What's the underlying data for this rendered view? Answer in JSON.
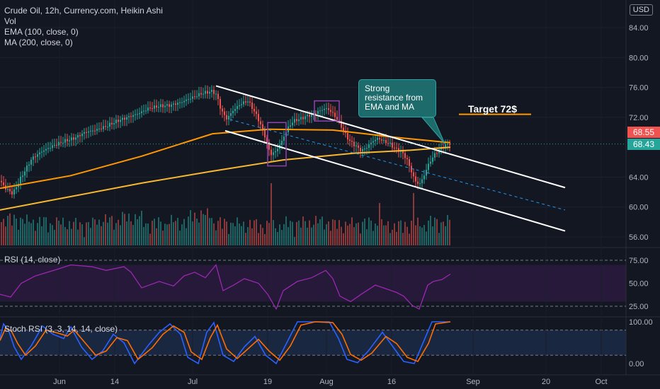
{
  "header": {
    "symbol_line": "Crude Oil, 12h, Currency.com, Heikin Ashi",
    "vol": "Vol",
    "ema": "EMA (100, close, 0)",
    "ma": "MA (200, close, 0)",
    "currency": "USD"
  },
  "annotations": {
    "callout": "Strong resistance from EMA and MA",
    "target": "Target 72$"
  },
  "price_tags": {
    "ma_value": "68.55",
    "last_price": "68.43"
  },
  "rsi_label": "RSI (14, close)",
  "stoch_label": "Stoch RSI (3, 3, 14, 14, close)",
  "colors": {
    "background": "#131722",
    "bull": "#26a69a",
    "bear": "#ef5350",
    "ema": "#ff9800",
    "ma": "#f7b731",
    "rsi": "#9c27b0",
    "stoch_k": "#2962ff",
    "stoch_d": "#ff6d00"
  },
  "chart_data": {
    "type": "candlestick",
    "price_axis": {
      "ticks": [
        "84.00",
        "80.00",
        "76.00",
        "72.00",
        "64.00",
        "60.00",
        "56.00"
      ],
      "ylim": [
        55,
        86
      ]
    },
    "rsi_axis": {
      "ticks": [
        "75.00",
        "50.00",
        "25.00"
      ],
      "ylim": [
        12,
        86
      ]
    },
    "stoch_axis": {
      "ticks": [
        "100.00",
        "0.00"
      ],
      "ylim": [
        -12,
        112
      ]
    },
    "time_ticks": [
      "Jun",
      "14",
      "Jul",
      "19",
      "Aug",
      "16",
      "Sep",
      "20",
      "Oct"
    ],
    "price_path": [
      [
        0,
        63.5
      ],
      [
        8,
        62.5
      ],
      [
        18,
        61.8
      ],
      [
        30,
        64.0
      ],
      [
        45,
        66.5
      ],
      [
        60,
        67.5
      ],
      [
        75,
        68.2
      ],
      [
        90,
        68.8
      ],
      [
        105,
        69.2
      ],
      [
        120,
        70.0
      ],
      [
        135,
        70.3
      ],
      [
        150,
        70.8
      ],
      [
        165,
        71.5
      ],
      [
        180,
        72.0
      ],
      [
        195,
        72.5
      ],
      [
        210,
        73.2
      ],
      [
        225,
        73.5
      ],
      [
        240,
        73.6
      ],
      [
        255,
        74.0
      ],
      [
        270,
        74.6
      ],
      [
        285,
        75.2
      ],
      [
        300,
        75.5
      ],
      [
        306,
        75.0
      ],
      [
        312,
        73.0
      ],
      [
        320,
        71.8
      ],
      [
        330,
        73.0
      ],
      [
        340,
        73.8
      ],
      [
        350,
        74.2
      ],
      [
        358,
        73.0
      ],
      [
        366,
        71.5
      ],
      [
        374,
        69.5
      ],
      [
        382,
        67.0
      ],
      [
        390,
        67.5
      ],
      [
        398,
        68.8
      ],
      [
        406,
        70.5
      ],
      [
        414,
        71.5
      ],
      [
        424,
        71.8
      ],
      [
        434,
        72.2
      ],
      [
        444,
        72.5
      ],
      [
        454,
        73.0
      ],
      [
        462,
        73.2
      ],
      [
        470,
        72.5
      ],
      [
        478,
        71.5
      ],
      [
        486,
        70.0
      ],
      [
        494,
        68.8
      ],
      [
        502,
        68.2
      ],
      [
        510,
        67.5
      ],
      [
        518,
        68.0
      ],
      [
        526,
        68.8
      ],
      [
        534,
        69.2
      ],
      [
        542,
        68.8
      ],
      [
        550,
        68.5
      ],
      [
        558,
        67.8
      ],
      [
        566,
        67.5
      ],
      [
        574,
        66.5
      ],
      [
        580,
        65.0
      ],
      [
        586,
        63.5
      ],
      [
        592,
        63.0
      ],
      [
        598,
        64.0
      ],
      [
        604,
        65.5
      ],
      [
        610,
        66.5
      ],
      [
        616,
        67.3
      ],
      [
        622,
        67.8
      ],
      [
        628,
        68.2
      ],
      [
        636,
        68.5
      ]
    ],
    "ema_100": [
      [
        0,
        62.5
      ],
      [
        100,
        64.2
      ],
      [
        200,
        66.8
      ],
      [
        300,
        69.8
      ],
      [
        380,
        70.4
      ],
      [
        470,
        70.3
      ],
      [
        560,
        69.3
      ],
      [
        636,
        68.6
      ]
    ],
    "ma_200": [
      [
        0,
        59.6
      ],
      [
        100,
        61.4
      ],
      [
        200,
        63.2
      ],
      [
        300,
        64.8
      ],
      [
        400,
        66.3
      ],
      [
        500,
        67.2
      ],
      [
        580,
        67.6
      ],
      [
        636,
        68.0
      ]
    ],
    "channel_upper": [
      [
        305,
        76.2
      ],
      [
        798,
        62.6
      ]
    ],
    "channel_lower": [
      [
        318,
        70.2
      ],
      [
        798,
        56.8
      ]
    ],
    "channel_mid": [
      [
        325,
        71.7
      ],
      [
        798,
        59.6
      ]
    ],
    "target_level": 72.4,
    "rsi_path": [
      [
        0,
        38
      ],
      [
        15,
        35
      ],
      [
        30,
        50
      ],
      [
        50,
        58
      ],
      [
        80,
        65
      ],
      [
        100,
        70
      ],
      [
        130,
        68
      ],
      [
        150,
        64
      ],
      [
        175,
        68
      ],
      [
        185,
        62
      ],
      [
        200,
        45
      ],
      [
        225,
        52
      ],
      [
        245,
        47
      ],
      [
        260,
        58
      ],
      [
        275,
        62
      ],
      [
        290,
        56
      ],
      [
        305,
        70
      ],
      [
        315,
        42
      ],
      [
        330,
        48
      ],
      [
        345,
        55
      ],
      [
        365,
        50
      ],
      [
        378,
        38
      ],
      [
        390,
        22
      ],
      [
        400,
        42
      ],
      [
        420,
        52
      ],
      [
        440,
        56
      ],
      [
        460,
        64
      ],
      [
        470,
        55
      ],
      [
        480,
        36
      ],
      [
        495,
        30
      ],
      [
        510,
        38
      ],
      [
        530,
        48
      ],
      [
        545,
        44
      ],
      [
        560,
        40
      ],
      [
        570,
        36
      ],
      [
        582,
        26
      ],
      [
        592,
        22
      ],
      [
        604,
        48
      ],
      [
        612,
        52
      ],
      [
        624,
        54
      ],
      [
        636,
        60
      ]
    ],
    "stoch_k": [
      [
        0,
        60
      ],
      [
        5,
        95
      ],
      [
        12,
        80
      ],
      [
        20,
        40
      ],
      [
        30,
        10
      ],
      [
        45,
        45
      ],
      [
        60,
        90
      ],
      [
        75,
        70
      ],
      [
        90,
        60
      ],
      [
        100,
        88
      ],
      [
        115,
        40
      ],
      [
        130,
        10
      ],
      [
        145,
        30
      ],
      [
        160,
        70
      ],
      [
        175,
        50
      ],
      [
        190,
        0
      ],
      [
        210,
        45
      ],
      [
        225,
        75
      ],
      [
        240,
        95
      ],
      [
        255,
        70
      ],
      [
        265,
        15
      ],
      [
        280,
        0
      ],
      [
        292,
        75
      ],
      [
        302,
        98
      ],
      [
        315,
        20
      ],
      [
        330,
        5
      ],
      [
        345,
        40
      ],
      [
        360,
        65
      ],
      [
        375,
        20
      ],
      [
        390,
        0
      ],
      [
        405,
        50
      ],
      [
        420,
        100
      ],
      [
        440,
        100
      ],
      [
        465,
        100
      ],
      [
        478,
        60
      ],
      [
        490,
        10
      ],
      [
        505,
        2
      ],
      [
        520,
        30
      ],
      [
        540,
        75
      ],
      [
        555,
        40
      ],
      [
        570,
        5
      ],
      [
        585,
        0
      ],
      [
        600,
        60
      ],
      [
        610,
        100
      ],
      [
        636,
        100
      ]
    ],
    "stoch_d": [
      [
        0,
        55
      ],
      [
        8,
        85
      ],
      [
        16,
        78
      ],
      [
        25,
        48
      ],
      [
        36,
        20
      ],
      [
        50,
        42
      ],
      [
        65,
        80
      ],
      [
        80,
        74
      ],
      [
        95,
        66
      ],
      [
        105,
        80
      ],
      [
        120,
        50
      ],
      [
        135,
        20
      ],
      [
        150,
        30
      ],
      [
        165,
        62
      ],
      [
        180,
        55
      ],
      [
        195,
        10
      ],
      [
        215,
        38
      ],
      [
        230,
        70
      ],
      [
        245,
        90
      ],
      [
        260,
        75
      ],
      [
        270,
        28
      ],
      [
        285,
        10
      ],
      [
        297,
        62
      ],
      [
        307,
        92
      ],
      [
        320,
        35
      ],
      [
        335,
        12
      ],
      [
        350,
        35
      ],
      [
        365,
        58
      ],
      [
        380,
        30
      ],
      [
        395,
        8
      ],
      [
        410,
        42
      ],
      [
        425,
        92
      ],
      [
        445,
        100
      ],
      [
        470,
        98
      ],
      [
        483,
        70
      ],
      [
        495,
        22
      ],
      [
        510,
        8
      ],
      [
        525,
        25
      ],
      [
        545,
        65
      ],
      [
        560,
        48
      ],
      [
        575,
        15
      ],
      [
        590,
        5
      ],
      [
        605,
        48
      ],
      [
        615,
        95
      ],
      [
        636,
        100
      ]
    ],
    "volume_profile": [
      0.45,
      0.35,
      0.3,
      0.25,
      0.4,
      0.5,
      0.3,
      0.35,
      0.6,
      0.3,
      0.25,
      0.2,
      0.3,
      0.35,
      0.25,
      0.3,
      0.2,
      0.25,
      0.35,
      0.3
    ]
  }
}
